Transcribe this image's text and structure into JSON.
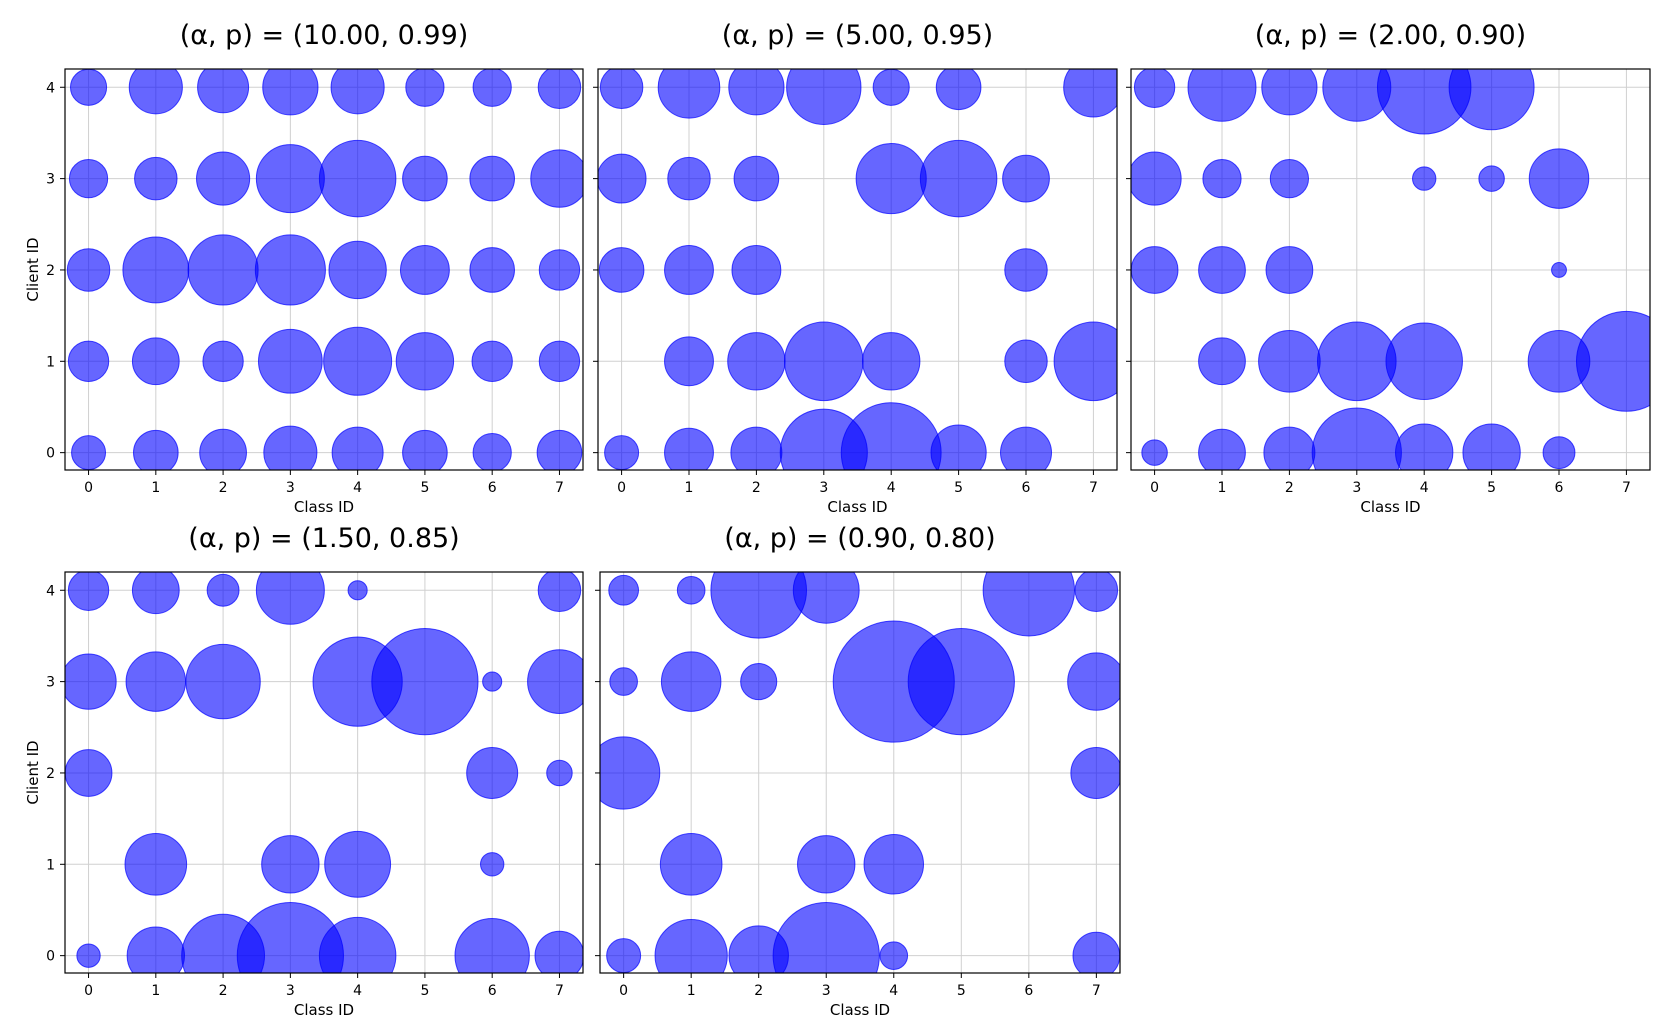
{
  "colors": {
    "bubble_fill": "#0000ff",
    "bubble_alpha": 0.6,
    "grid": "#d0d0d0",
    "axes": "#000000"
  },
  "chart_data": [
    {
      "type": "scatter",
      "title": "(α, p) = (10.00, 0.99)",
      "xlabel": "Class ID",
      "ylabel": "Client ID",
      "xticks": [
        "0",
        "1",
        "2",
        "3",
        "4",
        "5",
        "6",
        "7"
      ],
      "yticks": [
        "0",
        "1",
        "2",
        "3",
        "4"
      ],
      "xlim": [
        -0.35,
        7.35
      ],
      "ylim": [
        -0.19,
        4.2
      ],
      "grid": true,
      "points": [
        [
          0,
          4,
          289
        ],
        [
          1,
          4,
          625
        ],
        [
          2,
          4,
          576
        ],
        [
          3,
          4,
          676
        ],
        [
          4,
          4,
          625
        ],
        [
          5,
          4,
          324
        ],
        [
          6,
          4,
          324
        ],
        [
          7,
          4,
          400
        ],
        [
          0,
          3,
          324
        ],
        [
          1,
          3,
          400
        ],
        [
          2,
          3,
          625
        ],
        [
          3,
          3,
          1024
        ],
        [
          4,
          3,
          1296
        ],
        [
          5,
          3,
          441
        ],
        [
          6,
          3,
          441
        ],
        [
          7,
          3,
          729
        ],
        [
          0,
          2,
          400
        ],
        [
          1,
          2,
          961
        ],
        [
          2,
          2,
          1089
        ],
        [
          3,
          2,
          1089
        ],
        [
          4,
          2,
          729
        ],
        [
          5,
          2,
          529
        ],
        [
          6,
          2,
          441
        ],
        [
          7,
          2,
          361
        ],
        [
          0,
          1,
          361
        ],
        [
          1,
          1,
          484
        ],
        [
          2,
          1,
          361
        ],
        [
          3,
          1,
          900
        ],
        [
          4,
          1,
          1024
        ],
        [
          5,
          1,
          729
        ],
        [
          6,
          1,
          361
        ],
        [
          7,
          1,
          361
        ],
        [
          0,
          0,
          256
        ],
        [
          1,
          0,
          441
        ],
        [
          2,
          0,
          484
        ],
        [
          3,
          0,
          625
        ],
        [
          4,
          0,
          576
        ],
        [
          5,
          0,
          441
        ],
        [
          6,
          0,
          324
        ],
        [
          7,
          0,
          441
        ]
      ]
    },
    {
      "type": "scatter",
      "title": "(α, p) = (5.00, 0.95)",
      "xlabel": "Class ID",
      "ylabel": "",
      "xticks": [
        "0",
        "1",
        "2",
        "3",
        "4",
        "5",
        "6",
        "7"
      ],
      "yticks": [],
      "xlim": [
        -0.35,
        7.35
      ],
      "ylim": [
        -0.19,
        4.2
      ],
      "grid": true,
      "points": [
        [
          0,
          4,
          400
        ],
        [
          1,
          4,
          841
        ],
        [
          2,
          4,
          676
        ],
        [
          3,
          4,
          1225
        ],
        [
          4,
          4,
          289
        ],
        [
          5,
          4,
          441
        ],
        [
          7,
          4,
          784
        ],
        [
          0,
          3,
          529
        ],
        [
          1,
          3,
          400
        ],
        [
          2,
          3,
          441
        ],
        [
          4,
          3,
          1089
        ],
        [
          5,
          3,
          1296
        ],
        [
          6,
          3,
          484
        ],
        [
          0,
          2,
          441
        ],
        [
          1,
          2,
          529
        ],
        [
          2,
          2,
          529
        ],
        [
          6,
          2,
          400
        ],
        [
          1,
          1,
          529
        ],
        [
          2,
          1,
          729
        ],
        [
          3,
          1,
          1369
        ],
        [
          4,
          1,
          729
        ],
        [
          6,
          1,
          400
        ],
        [
          7,
          1,
          1369
        ],
        [
          0,
          0,
          256
        ],
        [
          1,
          0,
          529
        ],
        [
          2,
          0,
          576
        ],
        [
          3,
          0,
          1681
        ],
        [
          4,
          0,
          2209
        ],
        [
          5,
          0,
          676
        ],
        [
          6,
          0,
          576
        ]
      ]
    },
    {
      "type": "scatter",
      "title": "(α, p) = (2.00, 0.90)",
      "xlabel": "Class ID",
      "ylabel": "",
      "xticks": [
        "0",
        "1",
        "2",
        "3",
        "4",
        "5",
        "6",
        "7"
      ],
      "yticks": [],
      "xlim": [
        -0.35,
        7.35
      ],
      "ylim": [
        -0.19,
        4.2
      ],
      "grid": true,
      "points": [
        [
          0,
          4,
          361
        ],
        [
          1,
          4,
          1024
        ],
        [
          2,
          4,
          676
        ],
        [
          3,
          4,
          1024
        ],
        [
          4,
          4,
          1936
        ],
        [
          5,
          4,
          1600
        ],
        [
          0,
          3,
          625
        ],
        [
          1,
          3,
          324
        ],
        [
          2,
          3,
          324
        ],
        [
          4,
          3,
          121
        ],
        [
          5,
          3,
          144
        ],
        [
          6,
          3,
          784
        ],
        [
          0,
          2,
          484
        ],
        [
          1,
          2,
          484
        ],
        [
          2,
          2,
          484
        ],
        [
          6,
          2,
          49
        ],
        [
          1,
          1,
          484
        ],
        [
          2,
          1,
          841
        ],
        [
          3,
          1,
          1369
        ],
        [
          4,
          1,
          1296
        ],
        [
          6,
          1,
          841
        ],
        [
          7,
          1,
          2209
        ],
        [
          0,
          0,
          144
        ],
        [
          1,
          0,
          484
        ],
        [
          2,
          0,
          576
        ],
        [
          3,
          0,
          1764
        ],
        [
          4,
          0,
          729
        ],
        [
          5,
          0,
          729
        ],
        [
          6,
          0,
          225
        ]
      ]
    },
    {
      "type": "scatter",
      "title": "(α, p) = (1.50, 0.85)",
      "xlabel": "Class ID",
      "ylabel": "Client ID",
      "xticks": [
        "0",
        "1",
        "2",
        "3",
        "4",
        "5",
        "6",
        "7"
      ],
      "yticks": [
        "0",
        "1",
        "2",
        "3",
        "4"
      ],
      "xlim": [
        -0.35,
        7.35
      ],
      "ylim": [
        -0.19,
        4.2
      ],
      "grid": true,
      "points": [
        [
          0,
          4,
          361
        ],
        [
          1,
          4,
          484
        ],
        [
          2,
          4,
          225
        ],
        [
          3,
          4,
          1024
        ],
        [
          4,
          4,
          81
        ],
        [
          7,
          4,
          400
        ],
        [
          0,
          3,
          676
        ],
        [
          1,
          3,
          784
        ],
        [
          2,
          3,
          1225
        ],
        [
          4,
          3,
          1764
        ],
        [
          5,
          3,
          2500
        ],
        [
          6,
          3,
          81
        ],
        [
          7,
          3,
          900
        ],
        [
          0,
          2,
          484
        ],
        [
          6,
          2,
          576
        ],
        [
          7,
          2,
          144
        ],
        [
          1,
          1,
          841
        ],
        [
          3,
          1,
          729
        ],
        [
          4,
          1,
          961
        ],
        [
          6,
          1,
          121
        ],
        [
          0,
          0,
          121
        ],
        [
          1,
          0,
          729
        ],
        [
          2,
          0,
          1521
        ],
        [
          3,
          0,
          2500
        ],
        [
          4,
          0,
          1296
        ],
        [
          6,
          0,
          1225
        ],
        [
          7,
          0,
          529
        ]
      ]
    },
    {
      "type": "scatter",
      "title": "(α, p) = (0.90, 0.80)",
      "xlabel": "Class ID",
      "ylabel": "",
      "xticks": [
        "0",
        "1",
        "2",
        "3",
        "4",
        "5",
        "6",
        "7"
      ],
      "yticks": [],
      "xlim": [
        -0.35,
        7.35
      ],
      "ylim": [
        -0.19,
        4.2
      ],
      "grid": true,
      "points": [
        [
          0,
          4,
          196
        ],
        [
          1,
          4,
          169
        ],
        [
          2,
          4,
          2025
        ],
        [
          3,
          4,
          961
        ],
        [
          6,
          4,
          1849
        ],
        [
          7,
          4,
          400
        ],
        [
          0,
          3,
          169
        ],
        [
          1,
          3,
          784
        ],
        [
          2,
          3,
          289
        ],
        [
          4,
          3,
          3249
        ],
        [
          5,
          3,
          2500
        ],
        [
          7,
          3,
          729
        ],
        [
          0,
          2,
          1156
        ],
        [
          7,
          2,
          576
        ],
        [
          1,
          1,
          841
        ],
        [
          3,
          1,
          729
        ],
        [
          4,
          1,
          784
        ],
        [
          0,
          0,
          256
        ],
        [
          1,
          0,
          1156
        ],
        [
          2,
          0,
          784
        ],
        [
          3,
          0,
          2500
        ],
        [
          4,
          0,
          169
        ],
        [
          7,
          0,
          484
        ]
      ]
    }
  ]
}
